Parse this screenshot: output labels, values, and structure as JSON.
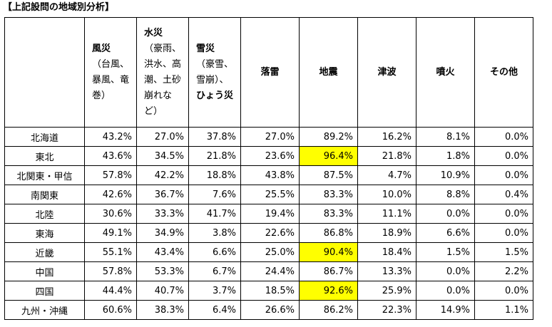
{
  "title": "【上記設問の地域別分析】",
  "columns": [
    {
      "bold": "風災",
      "sub": [
        "（台風、",
        "暴風、竜",
        "巻）"
      ]
    },
    {
      "bold": "水災",
      "sub": [
        "（豪雨、",
        "洪水、高",
        "潮、土砂",
        "崩れな",
        "ど）"
      ]
    },
    {
      "bold": "雪災",
      "sub": [
        "（豪雪、",
        "雪崩）、"
      ],
      "bold2": "ひょう災"
    },
    {
      "bold": "落雷",
      "sub": []
    },
    {
      "bold": "地震",
      "sub": []
    },
    {
      "bold": "津波",
      "sub": []
    },
    {
      "bold": "噴火",
      "sub": []
    },
    {
      "bold": "その他",
      "sub": []
    }
  ],
  "highlight_color": "#ffff00",
  "rows": [
    {
      "region": "北海道",
      "values": [
        "43.2%",
        "27.0%",
        "37.8%",
        "27.0%",
        "89.2%",
        "16.2%",
        "8.1%",
        "0.0%"
      ],
      "highlight": []
    },
    {
      "region": "東北",
      "values": [
        "43.6%",
        "34.5%",
        "21.8%",
        "23.6%",
        "96.4%",
        "21.8%",
        "1.8%",
        "0.0%"
      ],
      "highlight": [
        4
      ]
    },
    {
      "region": "北関東・甲信",
      "values": [
        "57.8%",
        "42.2%",
        "18.8%",
        "43.8%",
        "87.5%",
        "4.7%",
        "10.9%",
        "0.0%"
      ],
      "highlight": []
    },
    {
      "region": "南関東",
      "values": [
        "42.6%",
        "36.7%",
        "7.6%",
        "25.5%",
        "83.3%",
        "10.0%",
        "8.8%",
        "0.4%"
      ],
      "highlight": []
    },
    {
      "region": "北陸",
      "values": [
        "30.6%",
        "33.3%",
        "41.7%",
        "19.4%",
        "83.3%",
        "11.1%",
        "0.0%",
        "0.0%"
      ],
      "highlight": []
    },
    {
      "region": "東海",
      "values": [
        "49.1%",
        "34.9%",
        "3.8%",
        "22.6%",
        "86.8%",
        "18.9%",
        "6.6%",
        "0.0%"
      ],
      "highlight": []
    },
    {
      "region": "近畿",
      "values": [
        "55.1%",
        "43.4%",
        "6.6%",
        "25.0%",
        "90.4%",
        "18.4%",
        "1.5%",
        "1.5%"
      ],
      "highlight": [
        4
      ]
    },
    {
      "region": "中国",
      "values": [
        "57.8%",
        "53.3%",
        "6.7%",
        "24.4%",
        "86.7%",
        "13.3%",
        "0.0%",
        "2.2%"
      ],
      "highlight": []
    },
    {
      "region": "四国",
      "values": [
        "44.4%",
        "40.7%",
        "3.7%",
        "18.5%",
        "92.6%",
        "25.9%",
        "0.0%",
        "0.0%"
      ],
      "highlight": [
        4
      ]
    },
    {
      "region": "九州・沖縄",
      "values": [
        "60.6%",
        "38.3%",
        "6.4%",
        "26.6%",
        "86.2%",
        "22.3%",
        "14.9%",
        "1.1%"
      ],
      "highlight": []
    }
  ]
}
